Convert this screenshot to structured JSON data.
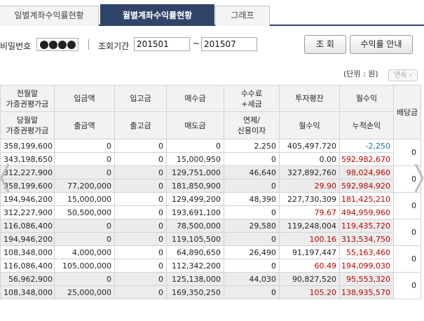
{
  "tabs": [
    {
      "label": "일별계좌수익률현황",
      "active": false
    },
    {
      "label": "월별계좌수익률현황",
      "active": true
    },
    {
      "label": "그래프",
      "active": false
    }
  ],
  "filter": {
    "password_label": "비밀번호",
    "period_label": "조회기간",
    "start_month": "201501",
    "tilde": "~",
    "end_month": "201507",
    "search_button": "조 회",
    "guide_button": "수익률 안내"
  },
  "unit_label": "(단위 : 원)",
  "continue_button": "연속",
  "columns": {
    "row1": [
      "전월말\n가증권평가금",
      "입금액",
      "입고금",
      "매수금",
      "수수료\n+세금",
      "투자평잔",
      "월수익",
      "배당금"
    ],
    "row2": [
      "당월말\n가증권평가금",
      "출금액",
      "출고금",
      "매도금",
      "연체/\n신용이자",
      "월수익",
      "누적손익"
    ]
  },
  "groups": [
    {
      "shade": false,
      "dividend": "0",
      "rows": [
        [
          "358,199,600",
          "0",
          "0",
          "0",
          "2,250",
          "405,497,720",
          "-2,250"
        ],
        [
          "343,198,650",
          "0",
          "0",
          "15,000,950",
          "0",
          "0.00",
          "592,982,670"
        ]
      ]
    },
    {
      "shade": true,
      "dividend": "0",
      "rows": [
        [
          "312,227,900",
          "0",
          "0",
          "129,751,000",
          "46,640",
          "327,892,760",
          "98,024,960"
        ],
        [
          "358,199,600",
          "77,200,000",
          "0",
          "181,850,900",
          "0",
          "29.90",
          "592,984,920"
        ]
      ]
    },
    {
      "shade": false,
      "dividend": "0",
      "rows": [
        [
          "194,946,200",
          "15,000,000",
          "0",
          "129,499,200",
          "48,390",
          "227,730,309",
          "181,425,210"
        ],
        [
          "312,227,900",
          "50,500,000",
          "0",
          "193,691,100",
          "0",
          "79.67",
          "494,959,960"
        ]
      ]
    },
    {
      "shade": true,
      "dividend": "0",
      "rows": [
        [
          "116,086,400",
          "0",
          "0",
          "78,500,000",
          "29,580",
          "119,248,004",
          "119,435,720"
        ],
        [
          "194,946,200",
          "0",
          "0",
          "119,105,500",
          "0",
          "100.16",
          "313,534,750"
        ]
      ]
    },
    {
      "shade": false,
      "dividend": "0",
      "rows": [
        [
          "108,348,000",
          "4,000,000",
          "0",
          "64,890,650",
          "26,490",
          "91,197,447",
          "55,163,460"
        ],
        [
          "116,086,400",
          "105,000,000",
          "0",
          "112,342,200",
          "0",
          "60.49",
          "194,099,030"
        ]
      ]
    },
    {
      "shade": true,
      "dividend": "0",
      "rows": [
        [
          "56,962,900",
          "0",
          "0",
          "125,138,000",
          "44,030",
          "90,827,520",
          "95,553,320"
        ],
        [
          "108,348,000",
          "25,000,000",
          "0",
          "169,350,250",
          "0",
          "105.20",
          "138,935,570"
        ]
      ]
    }
  ],
  "colors": {
    "tab_active": "#2f4468",
    "profit_red": "#c00000",
    "loss_blue": "#1a6fb8"
  },
  "icons": [
    "chevron-left-icon",
    "chevron-right-icon"
  ]
}
